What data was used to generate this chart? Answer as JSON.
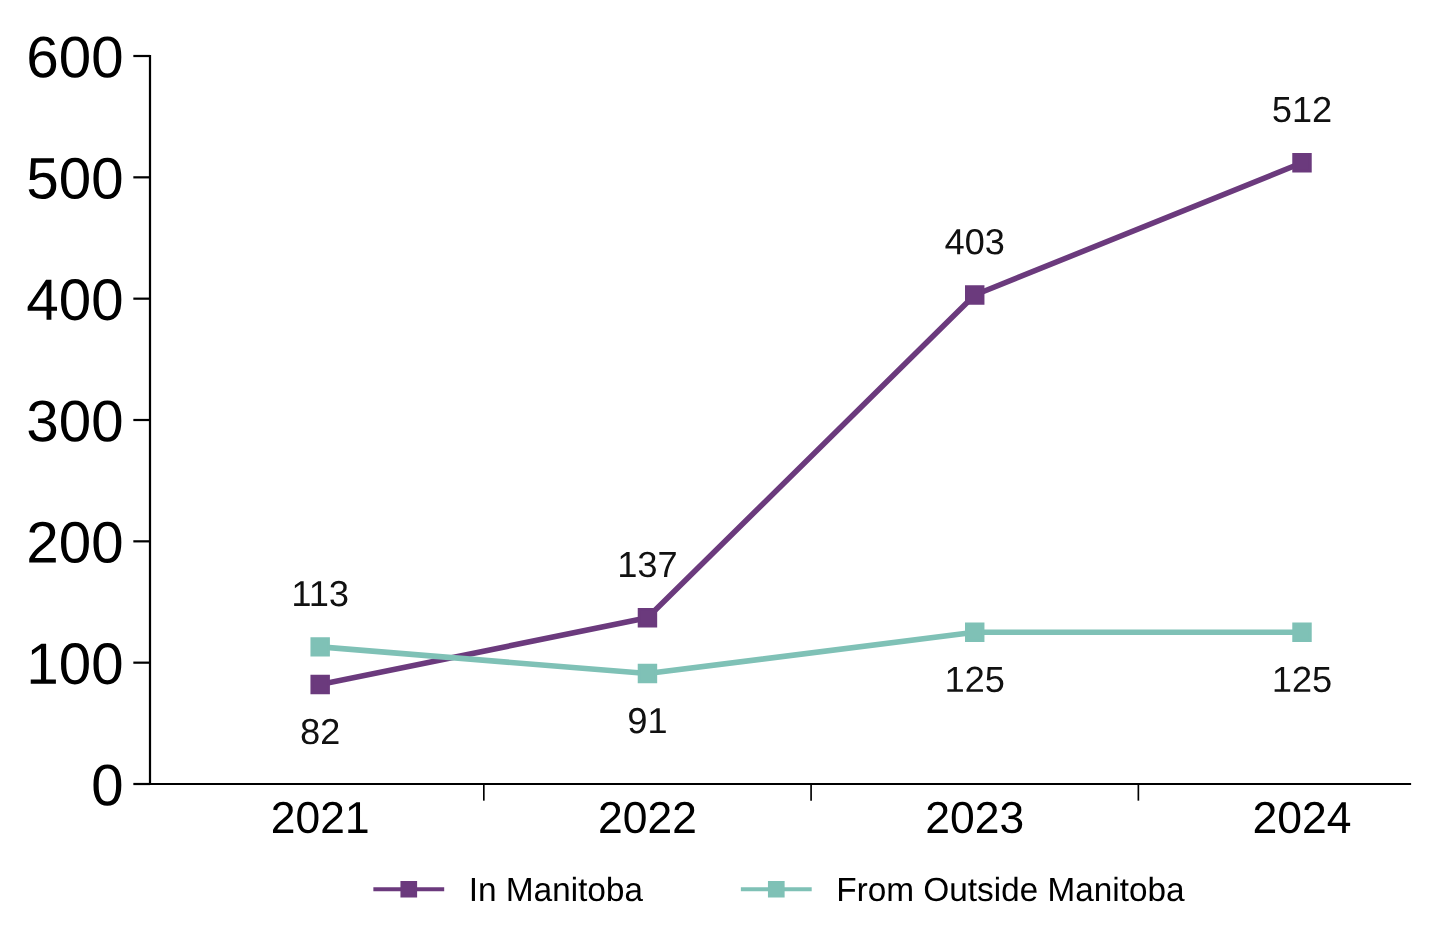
{
  "chart_data": {
    "type": "line",
    "categories": [
      "2021",
      "2022",
      "2023",
      "2024"
    ],
    "series": [
      {
        "name": "In Manitoba",
        "color": "#6b3a7d",
        "values": [
          82,
          137,
          403,
          512
        ]
      },
      {
        "name": "From Outside Manitoba",
        "color": "#7fc1b6",
        "values": [
          113,
          91,
          125,
          125
        ]
      }
    ],
    "ylim": [
      0,
      600
    ],
    "yticks": [
      0,
      100,
      200,
      300,
      400,
      500,
      600
    ],
    "marker": "square",
    "line_style": "solid",
    "data_labels": true,
    "legend": "bottom",
    "grid": false
  }
}
